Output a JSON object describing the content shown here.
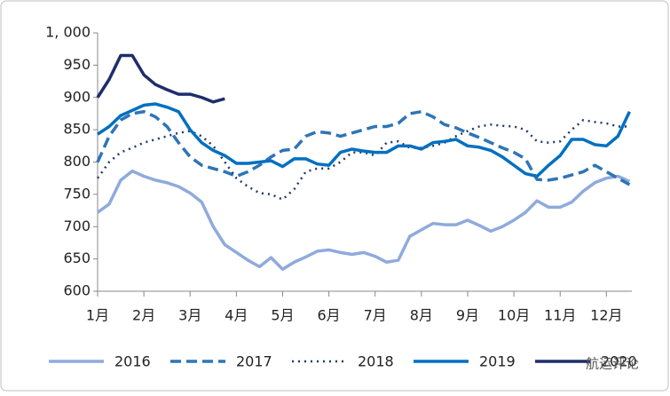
{
  "chart_data": {
    "type": "line",
    "x": [
      1,
      1.25,
      1.5,
      1.75,
      2,
      2.25,
      2.5,
      2.75,
      3,
      3.25,
      3.5,
      3.75,
      4,
      4.25,
      4.5,
      4.75,
      5,
      5.25,
      5.5,
      5.75,
      6,
      6.25,
      6.5,
      6.75,
      7,
      7.25,
      7.5,
      7.75,
      8,
      8.25,
      8.5,
      8.75,
      9,
      9.25,
      9.5,
      9.75,
      10,
      10.25,
      10.5,
      10.75,
      11,
      11.25,
      11.5,
      11.75,
      12,
      12.25,
      12.5
    ],
    "xlim": [
      1,
      12.55
    ],
    "xticks": [
      {
        "value": 1,
        "label": "1月"
      },
      {
        "value": 2,
        "label": "2月"
      },
      {
        "value": 3,
        "label": "3月"
      },
      {
        "value": 4,
        "label": "4月"
      },
      {
        "value": 5,
        "label": "5月"
      },
      {
        "value": 6,
        "label": "6月"
      },
      {
        "value": 7,
        "label": "7月"
      },
      {
        "value": 8,
        "label": "8月"
      },
      {
        "value": 9,
        "label": "9月"
      },
      {
        "value": 10,
        "label": "10月"
      },
      {
        "value": 11,
        "label": "11月"
      },
      {
        "value": 12,
        "label": "12月"
      }
    ],
    "ylim": [
      600,
      1000
    ],
    "yticks": [
      600,
      650,
      700,
      750,
      800,
      850,
      900,
      950,
      {
        "value": 1000,
        "label": "1, 000"
      }
    ],
    "watermark": "航运评论",
    "series": [
      {
        "name": "2016",
        "color": "#8faadc",
        "dash": "solid",
        "values": [
          722,
          735,
          772,
          786,
          778,
          772,
          768,
          762,
          752,
          738,
          700,
          672,
          660,
          648,
          638,
          652,
          634,
          645,
          653,
          662,
          664,
          660,
          657,
          660,
          654,
          645,
          648,
          685,
          695,
          705,
          703,
          703,
          710,
          702,
          693,
          700,
          710,
          722,
          740,
          730,
          730,
          738,
          755,
          768,
          775,
          778,
          770
        ]
      },
      {
        "name": "2017",
        "color": "#2e75b6",
        "dash": "dash",
        "values": [
          800,
          840,
          865,
          875,
          878,
          870,
          855,
          830,
          808,
          795,
          790,
          785,
          778,
          785,
          795,
          808,
          818,
          820,
          840,
          847,
          845,
          840,
          845,
          850,
          855,
          855,
          860,
          875,
          878,
          870,
          858,
          853,
          845,
          838,
          830,
          822,
          815,
          805,
          773,
          772,
          775,
          780,
          785,
          795,
          785,
          775,
          765
        ]
      },
      {
        "name": "2018",
        "color": "#1f3864",
        "dash": "dot",
        "values": [
          775,
          800,
          815,
          822,
          830,
          835,
          840,
          845,
          848,
          840,
          825,
          800,
          775,
          762,
          752,
          750,
          742,
          758,
          785,
          790,
          790,
          800,
          815,
          815,
          810,
          830,
          832,
          822,
          822,
          825,
          830,
          840,
          848,
          855,
          858,
          856,
          855,
          850,
          832,
          830,
          832,
          850,
          865,
          862,
          860,
          855,
          855
        ]
      },
      {
        "name": "2019",
        "color": "#0070c0",
        "dash": "solid",
        "values": [
          843,
          855,
          872,
          880,
          888,
          890,
          885,
          878,
          850,
          830,
          818,
          810,
          798,
          798,
          800,
          802,
          793,
          805,
          805,
          797,
          795,
          815,
          820,
          817,
          815,
          815,
          825,
          825,
          820,
          830,
          832,
          835,
          825,
          823,
          818,
          808,
          795,
          782,
          778,
          795,
          810,
          835,
          835,
          827,
          825,
          840,
          878
        ]
      },
      {
        "name": "2020",
        "color": "#1f2d6b",
        "dash": "solid",
        "values": [
          900,
          928,
          965,
          965,
          935,
          920,
          912,
          905,
          905,
          900,
          893,
          898,
          null,
          null,
          null,
          null,
          null,
          null,
          null,
          null,
          null,
          null,
          null,
          null,
          null,
          null,
          null,
          null,
          null,
          null,
          null,
          null,
          null,
          null,
          null,
          null,
          null,
          null,
          null,
          null,
          null,
          null,
          null,
          null,
          null,
          null,
          null
        ]
      }
    ]
  }
}
